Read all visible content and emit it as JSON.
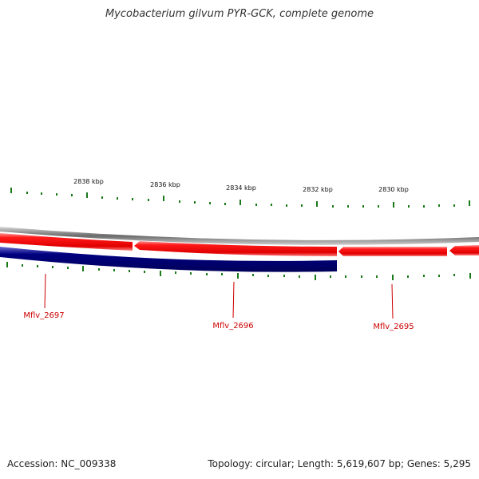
{
  "title": "Mycobacterium gilvum PYR-GCK, complete genome",
  "accession": "Accession: NC_009338",
  "summary": "Topology: circular; Length: 5,619,607 bp; Genes: 5,295",
  "colors": {
    "tick": "#1a7a1a",
    "forward_gene": "#ff0000",
    "reverse_gene": "#000080",
    "backbone": "#777777",
    "label": "#cc0000"
  },
  "ruler_labels": [
    "2838 kbp",
    "2836 kbp",
    "2834 kbp",
    "2832 kbp",
    "2830 kbp"
  ],
  "genes": [
    {
      "name": "Mflv_2697",
      "strand": "reverse"
    },
    {
      "name": "Mflv_2696",
      "strand": "forward"
    },
    {
      "name": "Mflv_2695",
      "strand": "forward"
    }
  ]
}
